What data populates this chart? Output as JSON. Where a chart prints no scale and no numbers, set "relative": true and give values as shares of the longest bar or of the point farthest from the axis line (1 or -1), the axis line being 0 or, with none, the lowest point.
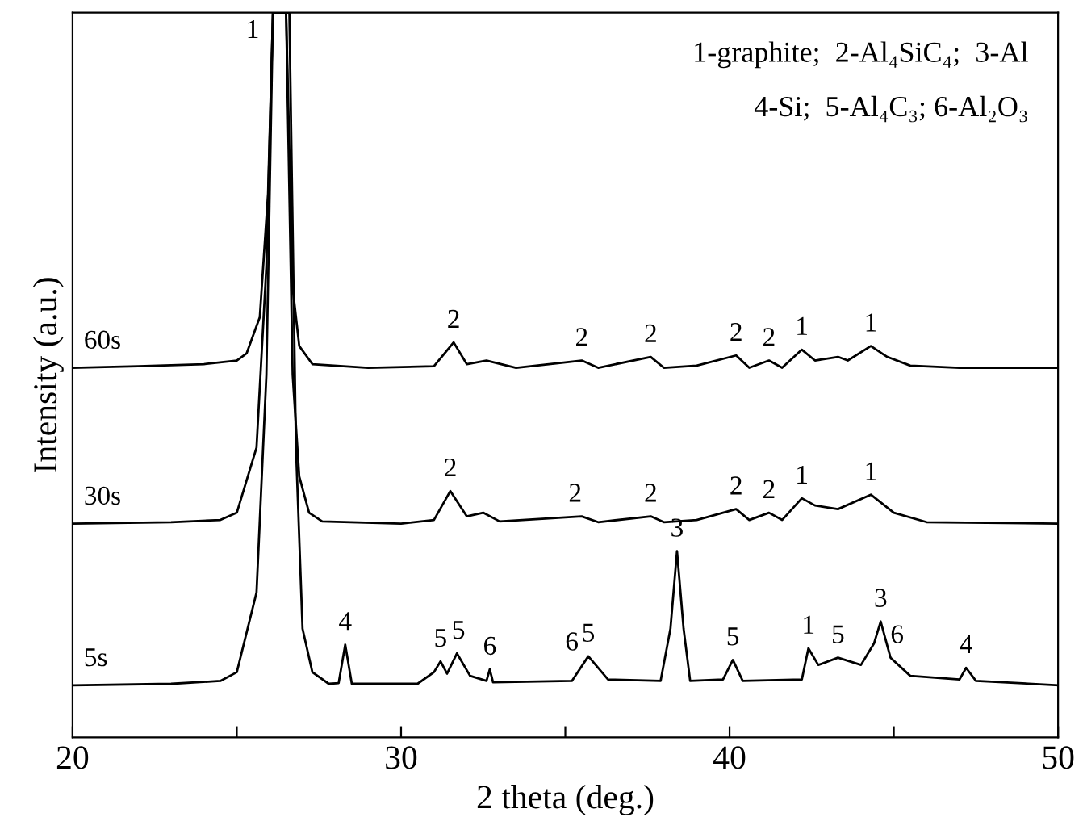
{
  "chart_data": {
    "type": "line",
    "relative": true,
    "xlabel": "2 theta (deg.)",
    "ylabel": "Intensity (a.u.)",
    "xlim": [
      20,
      50
    ],
    "xticks": [
      20,
      {
        "value": 25,
        "label": null
      },
      30,
      {
        "value": 35,
        "label": null
      },
      40,
      {
        "value": 45,
        "label": null
      },
      50
    ],
    "grid": false,
    "marker": "none",
    "line_style": "solid",
    "series": [
      {
        "name": "60s",
        "color": "#000000",
        "x": [
          20,
          22,
          24,
          25,
          25.3,
          25.7,
          25.95,
          26.1,
          26.5,
          26.7,
          26.9,
          27.3,
          29,
          31,
          31.6,
          32.0,
          32.6,
          33.5,
          35.5,
          36,
          37.6,
          38,
          39,
          40.2,
          40.6,
          41.2,
          41.6,
          42.2,
          42.6,
          43.3,
          43.6,
          44.3,
          44.8,
          45.5,
          47,
          50
        ],
        "values": [
          0.51,
          0.512,
          0.515,
          0.52,
          0.53,
          0.58,
          0.75,
          1,
          1,
          0.62,
          0.54,
          0.515,
          0.51,
          0.512,
          0.545,
          0.515,
          0.52,
          0.51,
          0.52,
          0.51,
          0.525,
          0.51,
          0.513,
          0.527,
          0.51,
          0.52,
          0.51,
          0.535,
          0.52,
          0.525,
          0.52,
          0.54,
          0.525,
          0.513,
          0.51,
          0.51
        ]
      },
      {
        "name": "30s",
        "color": "#000000",
        "x": [
          20,
          23,
          24.5,
          25,
          25.6,
          25.9,
          26.1,
          26.5,
          26.7,
          26.9,
          27.2,
          27.6,
          30,
          31,
          31.5,
          32,
          32.5,
          33,
          35.5,
          36,
          37.6,
          38,
          39,
          40.2,
          40.6,
          41.2,
          41.6,
          42.2,
          42.6,
          43.3,
          44.3,
          45,
          46,
          50
        ],
        "values": [
          0.295,
          0.297,
          0.3,
          0.31,
          0.4,
          0.65,
          1,
          1,
          0.5,
          0.36,
          0.31,
          0.298,
          0.295,
          0.3,
          0.34,
          0.305,
          0.31,
          0.298,
          0.305,
          0.297,
          0.305,
          0.297,
          0.3,
          0.315,
          0.3,
          0.31,
          0.3,
          0.33,
          0.32,
          0.315,
          0.335,
          0.31,
          0.297,
          0.295
        ]
      },
      {
        "name": "5s",
        "color": "#000000",
        "x": [
          20,
          23,
          24.5,
          25,
          25.6,
          25.9,
          26.1,
          26.6,
          26.8,
          27,
          27.3,
          27.8,
          28.1,
          28.3,
          28.5,
          30.5,
          31.0,
          31.2,
          31.4,
          31.7,
          32.1,
          32.6,
          32.7,
          32.8,
          35.2,
          35.7,
          36.3,
          37.9,
          38.2,
          38.4,
          38.6,
          38.8,
          39.8,
          40.1,
          40.4,
          42.2,
          42.4,
          42.7,
          43.3,
          44.0,
          44.4,
          44.6,
          44.9,
          45.5,
          47.0,
          47.2,
          47.5,
          50
        ],
        "values": [
          0.072,
          0.074,
          0.078,
          0.09,
          0.2,
          0.5,
          1,
          1,
          0.4,
          0.15,
          0.09,
          0.074,
          0.075,
          0.128,
          0.074,
          0.074,
          0.09,
          0.105,
          0.088,
          0.116,
          0.085,
          0.078,
          0.094,
          0.076,
          0.078,
          0.112,
          0.08,
          0.078,
          0.15,
          0.257,
          0.15,
          0.078,
          0.08,
          0.107,
          0.078,
          0.08,
          0.123,
          0.1,
          0.11,
          0.1,
          0.13,
          0.16,
          0.11,
          0.085,
          0.08,
          0.096,
          0.078,
          0.072
        ]
      }
    ],
    "annotations": [
      "1-graphite;  2-Al₄SiC₄;  3-Al",
      "4-Si;  5-Al₄C₃; 6-Al₂O₃",
      {
        "text": "1",
        "x": 26.3,
        "y": 1
      },
      {
        "text": "2",
        "x": 31.6,
        "y": 0.545
      },
      {
        "text": "2",
        "x": 35.5,
        "y": 0.52
      },
      {
        "text": "2",
        "x": 37.6,
        "y": 0.525
      },
      {
        "text": "2",
        "x": 40.2,
        "y": 0.527
      },
      {
        "text": "2",
        "x": 41.2,
        "y": 0.52
      },
      {
        "text": "1",
        "x": 42.2,
        "y": 0.535
      },
      {
        "text": "1",
        "x": 44.3,
        "y": 0.54
      },
      {
        "text": "2",
        "x": 31.5,
        "y": 0.34
      },
      {
        "text": "2",
        "x": 35.3,
        "y": 0.305
      },
      {
        "text": "2",
        "x": 37.6,
        "y": 0.305
      },
      {
        "text": "2",
        "x": 40.2,
        "y": 0.315
      },
      {
        "text": "2",
        "x": 41.2,
        "y": 0.31
      },
      {
        "text": "1",
        "x": 42.2,
        "y": 0.33
      },
      {
        "text": "1",
        "x": 44.3,
        "y": 0.335
      },
      {
        "text": "4",
        "x": 28.3,
        "y": 0.128
      },
      {
        "text": "5",
        "x": 31.2,
        "y": 0.105
      },
      {
        "text": "5",
        "x": 31.75,
        "y": 0.116
      },
      {
        "text": "6",
        "x": 32.7,
        "y": 0.094
      },
      {
        "text": "6",
        "x": 35.2,
        "y": 0.1
      },
      {
        "text": "5",
        "x": 35.7,
        "y": 0.112
      },
      {
        "text": "3",
        "x": 38.4,
        "y": 0.257
      },
      {
        "text": "5",
        "x": 40.1,
        "y": 0.107
      },
      {
        "text": "1",
        "x": 42.4,
        "y": 0.123
      },
      {
        "text": "5",
        "x": 43.3,
        "y": 0.11
      },
      {
        "text": "3",
        "x": 44.6,
        "y": 0.16
      },
      {
        "text": "6",
        "x": 45.1,
        "y": 0.11
      },
      {
        "text": "4",
        "x": 47.2,
        "y": 0.096
      }
    ]
  }
}
